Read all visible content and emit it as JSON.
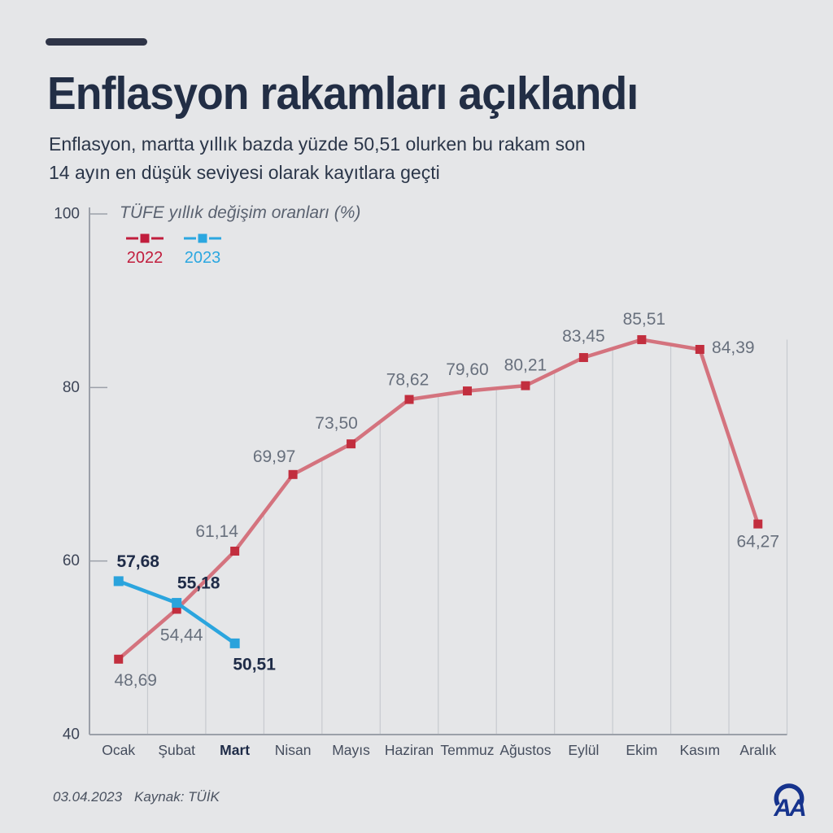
{
  "page": {
    "background": "#e5e6e8"
  },
  "header": {
    "accent_bar_color": "#2e3447",
    "title": "Enflasyon rakamları açıklandı",
    "subtitle": [
      "Enflasyon, martta yıllık bazda yüzde 50,51 olurken bu rakam son",
      "14 ayın en düşük seviyesi olarak kayıtlara geçti"
    ]
  },
  "chart_data": {
    "type": "line",
    "title": "TÜFE yıllık değişim oranları (%)",
    "categories": [
      "Ocak",
      "Şubat",
      "Mart",
      "Nisan",
      "Mayıs",
      "Haziran",
      "Temmuz",
      "Ağustos",
      "Eylül",
      "Ekim",
      "Kasım",
      "Aralık"
    ],
    "highlighted_category": "Mart",
    "ylim": [
      40,
      100
    ],
    "yticks": [
      40,
      60,
      80,
      100
    ],
    "grid": "vertical drop-lines at category boundaries",
    "legend_position": "top-left under chart title",
    "decimal_separator": ",",
    "series": [
      {
        "name": "2022",
        "values": [
          48.69,
          54.44,
          61.14,
          69.97,
          73.5,
          78.62,
          79.6,
          80.21,
          83.45,
          85.51,
          84.39,
          64.27
        ],
        "line_color": "#d4737e",
        "marker_color": "#c22e3e",
        "label_color": "#68707d",
        "legend_color": "#c11d3d",
        "label_weight": "normal"
      },
      {
        "name": "2023",
        "values": [
          57.68,
          55.18,
          50.51
        ],
        "line_color": "#2ba5de",
        "marker_color": "#2aa3dc",
        "label_color": "#1e2b47",
        "legend_color": "#2ba7e0",
        "label_weight": "bold"
      }
    ],
    "axis_color": "#9ba0a9",
    "gridline_color": "#c7cacf",
    "tick_label_color": "#3d4557",
    "month_label_color": "#454d5d",
    "highlight_label_color": "#1e2b47"
  },
  "footer": {
    "date": "03.04.2023",
    "source": "Kaynak: TÜİK"
  },
  "logo": {
    "label": "AA",
    "color": "#16338d",
    "description": "Anadolu Ajansı"
  }
}
